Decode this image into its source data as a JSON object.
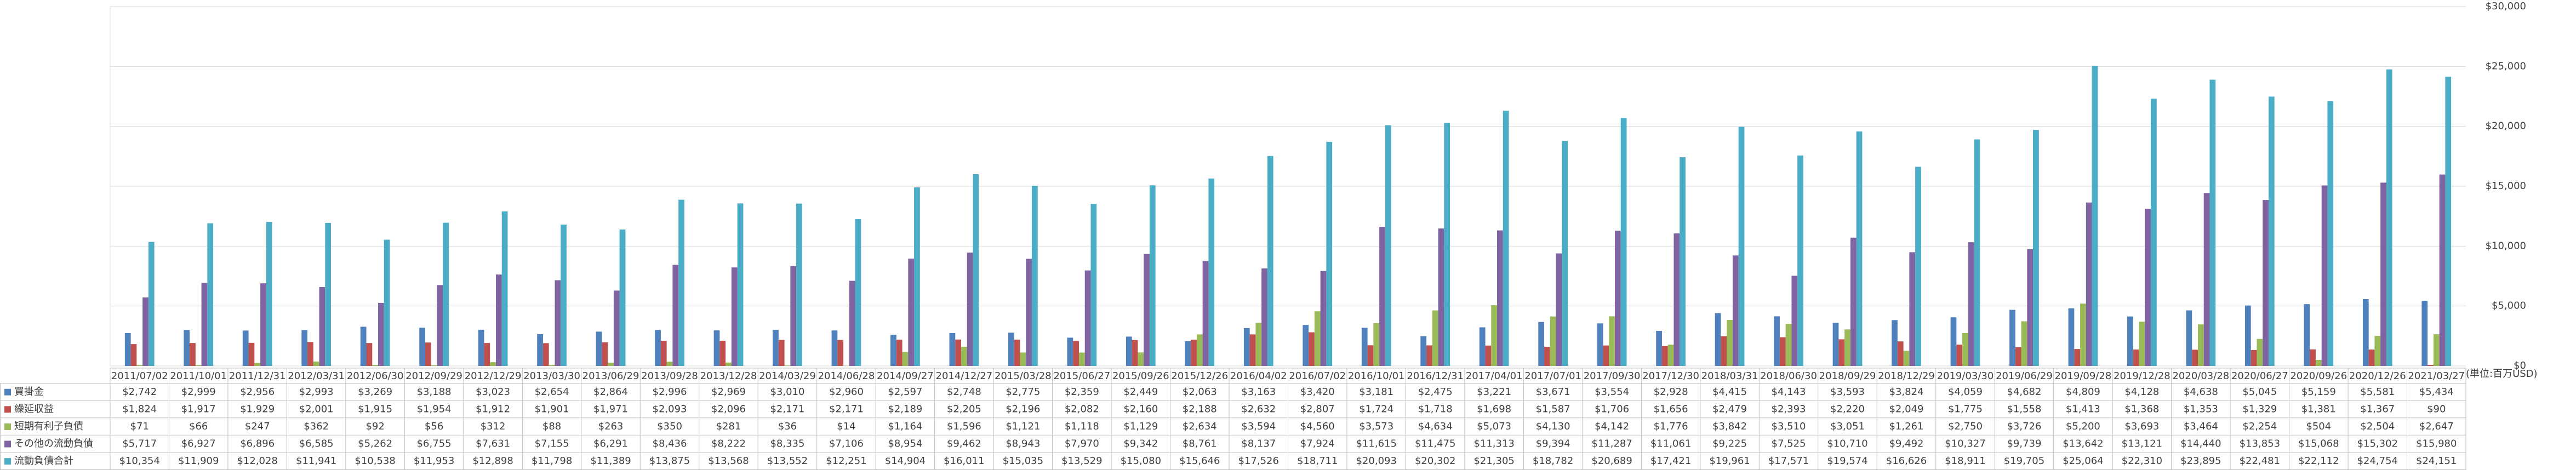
{
  "chart_data": {
    "type": "bar",
    "unit_label": "(単位:百万USD)",
    "categories": [
      "2011/07/02",
      "2011/10/01",
      "2011/12/31",
      "2012/03/31",
      "2012/06/30",
      "2012/09/29",
      "2012/12/29",
      "2013/03/30",
      "2013/06/29",
      "2013/09/28",
      "2013/12/28",
      "2014/03/29",
      "2014/06/28",
      "2014/09/27",
      "2014/12/27",
      "2015/03/28",
      "2015/06/27",
      "2015/09/26",
      "2015/12/26",
      "2016/04/02",
      "2016/07/02",
      "2016/10/01",
      "2016/12/31",
      "2017/04/01",
      "2017/07/01",
      "2017/09/30",
      "2017/12/30",
      "2018/03/31",
      "2018/06/30",
      "2018/09/29",
      "2018/12/29",
      "2019/03/30",
      "2019/06/29",
      "2019/09/28",
      "2019/12/28",
      "2020/03/28",
      "2020/06/27",
      "2020/09/26",
      "2020/12/26",
      "2021/03/27"
    ],
    "series": [
      {
        "name": "買掛金",
        "color": "#4f81bd",
        "values": [
          2742,
          2999,
          2956,
          2993,
          3269,
          3188,
          3023,
          2654,
          2864,
          2996,
          2969,
          3010,
          2960,
          2597,
          2748,
          2775,
          2359,
          2449,
          2063,
          3163,
          3420,
          3181,
          2475,
          3221,
          3671,
          3554,
          2928,
          4415,
          4143,
          3593,
          3824,
          4059,
          4682,
          4809,
          4128,
          4638,
          5045,
          5159,
          5581,
          5434
        ],
        "value_labels": [
          "$2,742",
          "$2,999",
          "$2,956",
          "$2,993",
          "$3,269",
          "$3,188",
          "$3,023",
          "$2,654",
          "$2,864",
          "$2,996",
          "$2,969",
          "$3,010",
          "$2,960",
          "$2,597",
          "$2,748",
          "$2,775",
          "$2,359",
          "$2,449",
          "$2,063",
          "$3,163",
          "$3,420",
          "$3,181",
          "$2,475",
          "$3,221",
          "$3,671",
          "$3,554",
          "$2,928",
          "$4,415",
          "$4,143",
          "$3,593",
          "$3,824",
          "$4,059",
          "$4,682",
          "$4,809",
          "$4,128",
          "$4,638",
          "$5,045",
          "$5,159",
          "$5,581",
          "$5,434"
        ]
      },
      {
        "name": "繰延収益",
        "color": "#c0504d",
        "values": [
          1824,
          1917,
          1929,
          2001,
          1915,
          1954,
          1912,
          1901,
          1971,
          2093,
          2096,
          2171,
          2171,
          2189,
          2205,
          2196,
          2082,
          2160,
          2188,
          2632,
          2807,
          1724,
          1718,
          1698,
          1587,
          1706,
          1656,
          2479,
          2393,
          2220,
          2049,
          1775,
          1558,
          1413,
          1368,
          1353,
          1329,
          1381,
          1367,
          90
        ],
        "value_labels": [
          "$1,824",
          "$1,917",
          "$1,929",
          "$2,001",
          "$1,915",
          "$1,954",
          "$1,912",
          "$1,901",
          "$1,971",
          "$2,093",
          "$2,096",
          "$2,171",
          "$2,171",
          "$2,189",
          "$2,205",
          "$2,196",
          "$2,082",
          "$2,160",
          "$2,188",
          "$2,632",
          "$2,807",
          "$1,724",
          "$1,718",
          "$1,698",
          "$1,587",
          "$1,706",
          "$1,656",
          "$2,479",
          "$2,393",
          "$2,220",
          "$2,049",
          "$1,775",
          "$1,558",
          "$1,413",
          "$1,368",
          "$1,353",
          "$1,329",
          "$1,381",
          "$1,367",
          "$90"
        ]
      },
      {
        "name": "短期有利子負債",
        "color": "#9bbb59",
        "values": [
          71,
          66,
          247,
          362,
          92,
          56,
          312,
          88,
          263,
          350,
          281,
          36,
          14,
          1164,
          1596,
          1121,
          1118,
          1129,
          2634,
          3594,
          4560,
          3573,
          4634,
          5073,
          4130,
          4142,
          1776,
          3842,
          3510,
          3051,
          1261,
          2750,
          3726,
          5200,
          3693,
          3464,
          2254,
          504,
          2504,
          2647
        ],
        "value_labels": [
          "$71",
          "$66",
          "$247",
          "$362",
          "$92",
          "$56",
          "$312",
          "$88",
          "$263",
          "$350",
          "$281",
          "$36",
          "$14",
          "$1,164",
          "$1,596",
          "$1,121",
          "$1,118",
          "$1,129",
          "$2,634",
          "$3,594",
          "$4,560",
          "$3,573",
          "$4,634",
          "$5,073",
          "$4,130",
          "$4,142",
          "$1,776",
          "$3,842",
          "$3,510",
          "$3,051",
          "$1,261",
          "$2,750",
          "$3,726",
          "$5,200",
          "$3,693",
          "$3,464",
          "$2,254",
          "$504",
          "$2,504",
          "$2,647"
        ]
      },
      {
        "name": "その他の流動負債",
        "color": "#8064a2",
        "values": [
          5717,
          6927,
          6896,
          6585,
          5262,
          6755,
          7631,
          7155,
          6291,
          8436,
          8222,
          8335,
          7106,
          8954,
          9462,
          8943,
          7970,
          9342,
          8761,
          8137,
          7924,
          11615,
          11475,
          11313,
          9394,
          11287,
          11061,
          9225,
          7525,
          10710,
          9492,
          10327,
          9739,
          13642,
          13121,
          14440,
          13853,
          15068,
          15302,
          15980
        ],
        "value_labels": [
          "$5,717",
          "$6,927",
          "$6,896",
          "$6,585",
          "$5,262",
          "$6,755",
          "$7,631",
          "$7,155",
          "$6,291",
          "$8,436",
          "$8,222",
          "$8,335",
          "$7,106",
          "$8,954",
          "$9,462",
          "$8,943",
          "$7,970",
          "$9,342",
          "$8,761",
          "$8,137",
          "$7,924",
          "$11,615",
          "$11,475",
          "$11,313",
          "$9,394",
          "$11,287",
          "$11,061",
          "$9,225",
          "$7,525",
          "$10,710",
          "$9,492",
          "$10,327",
          "$9,739",
          "$13,642",
          "$13,121",
          "$14,440",
          "$13,853",
          "$15,068",
          "$15,302",
          "$15,980"
        ]
      },
      {
        "name": "流動負債合計",
        "color": "#4bacc6",
        "values": [
          10354,
          11909,
          12028,
          11941,
          10538,
          11953,
          12898,
          11798,
          11389,
          13875,
          13568,
          13552,
          12251,
          14904,
          16011,
          15035,
          13529,
          15080,
          15646,
          17526,
          18711,
          20093,
          20302,
          21305,
          18782,
          20689,
          17421,
          19961,
          17571,
          19574,
          16626,
          18911,
          19705,
          25064,
          22310,
          23895,
          22481,
          22112,
          24754,
          24151
        ],
        "value_labels": [
          "$10,354",
          "$11,909",
          "$12,028",
          "$11,941",
          "$10,538",
          "$11,953",
          "$12,898",
          "$11,798",
          "$11,389",
          "$13,875",
          "$13,568",
          "$13,552",
          "$12,251",
          "$14,904",
          "$16,011",
          "$15,035",
          "$13,529",
          "$15,080",
          "$15,646",
          "$17,526",
          "$18,711",
          "$20,093",
          "$20,302",
          "$21,305",
          "$18,782",
          "$20,689",
          "$17,421",
          "$19,961",
          "$17,571",
          "$19,574",
          "$16,626",
          "$18,911",
          "$19,705",
          "$25,064",
          "$22,310",
          "$23,895",
          "$22,481",
          "$22,112",
          "$24,754",
          "$24,151"
        ]
      }
    ],
    "ylim": [
      0,
      30000
    ],
    "yticks": [
      {
        "value": 0,
        "label": "$0"
      },
      {
        "value": 5000,
        "label": "$5,000"
      },
      {
        "value": 10000,
        "label": "$10,000"
      },
      {
        "value": 15000,
        "label": "$15,000"
      },
      {
        "value": 20000,
        "label": "$20,000"
      },
      {
        "value": 25000,
        "label": "$25,000"
      },
      {
        "value": 30000,
        "label": "$30,000"
      }
    ],
    "grid": true,
    "y_axis_side": "right"
  }
}
